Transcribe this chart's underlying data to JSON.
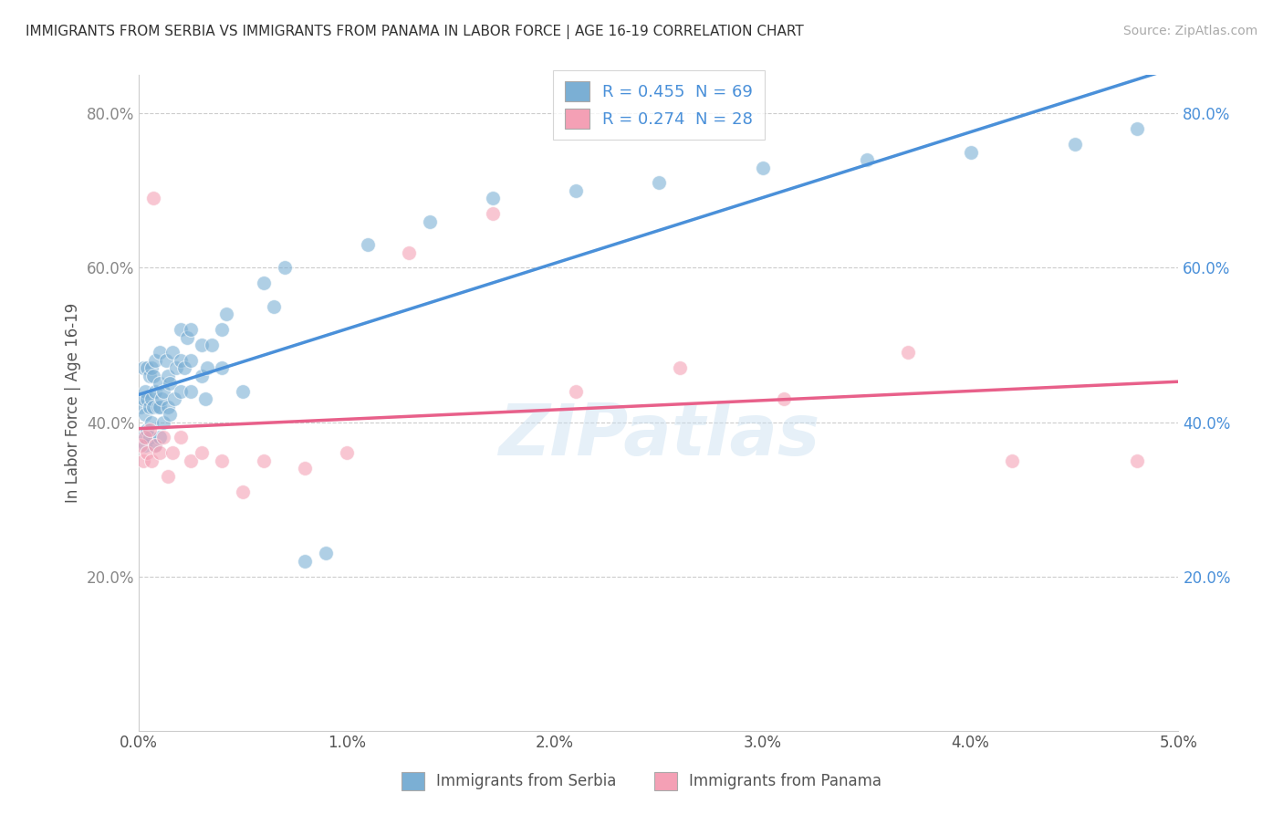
{
  "title": "IMMIGRANTS FROM SERBIA VS IMMIGRANTS FROM PANAMA IN LABOR FORCE | AGE 16-19 CORRELATION CHART",
  "source": "Source: ZipAtlas.com",
  "ylabel": "In Labor Force | Age 16-19",
  "xlim": [
    0.0,
    0.05
  ],
  "ylim": [
    0.0,
    0.85
  ],
  "xtick_labels": [
    "0.0%",
    "1.0%",
    "2.0%",
    "3.0%",
    "4.0%",
    "5.0%"
  ],
  "xtick_vals": [
    0.0,
    0.01,
    0.02,
    0.03,
    0.04,
    0.05
  ],
  "ytick_labels": [
    "20.0%",
    "40.0%",
    "60.0%",
    "80.0%"
  ],
  "ytick_vals": [
    0.2,
    0.4,
    0.6,
    0.8
  ],
  "serbia_color": "#7bafd4",
  "panama_color": "#f4a0b5",
  "serbia_line_color": "#4a90d9",
  "panama_line_color": "#e8608a",
  "serbia_R": 0.455,
  "serbia_N": 69,
  "panama_R": 0.274,
  "panama_N": 28,
  "legend_label_serbia": "Immigrants from Serbia",
  "legend_label_panama": "Immigrants from Panama",
  "watermark": "ZIPatlas",
  "right_ytick_color": "#4a90d9",
  "left_ytick_color": "#888888",
  "serbia_x": [
    0.0001,
    0.0002,
    0.0002,
    0.0002,
    0.0003,
    0.0003,
    0.0003,
    0.0004,
    0.0004,
    0.0004,
    0.0005,
    0.0005,
    0.0005,
    0.0006,
    0.0006,
    0.0006,
    0.0007,
    0.0007,
    0.0008,
    0.0008,
    0.0008,
    0.0009,
    0.001,
    0.001,
    0.001,
    0.001,
    0.0011,
    0.0012,
    0.0012,
    0.0013,
    0.0014,
    0.0014,
    0.0015,
    0.0015,
    0.0016,
    0.0017,
    0.0018,
    0.002,
    0.002,
    0.002,
    0.0022,
    0.0023,
    0.0025,
    0.0025,
    0.0025,
    0.003,
    0.003,
    0.0032,
    0.0033,
    0.0035,
    0.004,
    0.004,
    0.0042,
    0.005,
    0.006,
    0.0065,
    0.007,
    0.008,
    0.009,
    0.011,
    0.014,
    0.017,
    0.021,
    0.025,
    0.03,
    0.035,
    0.04,
    0.045,
    0.048
  ],
  "serbia_y": [
    0.42,
    0.38,
    0.43,
    0.47,
    0.37,
    0.41,
    0.44,
    0.39,
    0.43,
    0.47,
    0.38,
    0.42,
    0.46,
    0.4,
    0.43,
    0.47,
    0.42,
    0.46,
    0.37,
    0.44,
    0.48,
    0.42,
    0.38,
    0.42,
    0.45,
    0.49,
    0.43,
    0.4,
    0.44,
    0.48,
    0.42,
    0.46,
    0.41,
    0.45,
    0.49,
    0.43,
    0.47,
    0.44,
    0.48,
    0.52,
    0.47,
    0.51,
    0.44,
    0.48,
    0.52,
    0.46,
    0.5,
    0.43,
    0.47,
    0.5,
    0.52,
    0.47,
    0.54,
    0.44,
    0.58,
    0.55,
    0.6,
    0.22,
    0.23,
    0.63,
    0.66,
    0.69,
    0.7,
    0.71,
    0.73,
    0.74,
    0.75,
    0.76,
    0.78
  ],
  "panama_x": [
    0.0001,
    0.0002,
    0.0003,
    0.0004,
    0.0005,
    0.0006,
    0.0007,
    0.0008,
    0.001,
    0.0012,
    0.0014,
    0.0016,
    0.002,
    0.0025,
    0.003,
    0.004,
    0.005,
    0.006,
    0.008,
    0.01,
    0.013,
    0.017,
    0.021,
    0.026,
    0.031,
    0.037,
    0.042,
    0.048
  ],
  "panama_y": [
    0.37,
    0.35,
    0.38,
    0.36,
    0.39,
    0.35,
    0.69,
    0.37,
    0.36,
    0.38,
    0.33,
    0.36,
    0.38,
    0.35,
    0.36,
    0.35,
    0.31,
    0.35,
    0.34,
    0.36,
    0.62,
    0.67,
    0.44,
    0.47,
    0.43,
    0.49,
    0.35,
    0.35
  ]
}
